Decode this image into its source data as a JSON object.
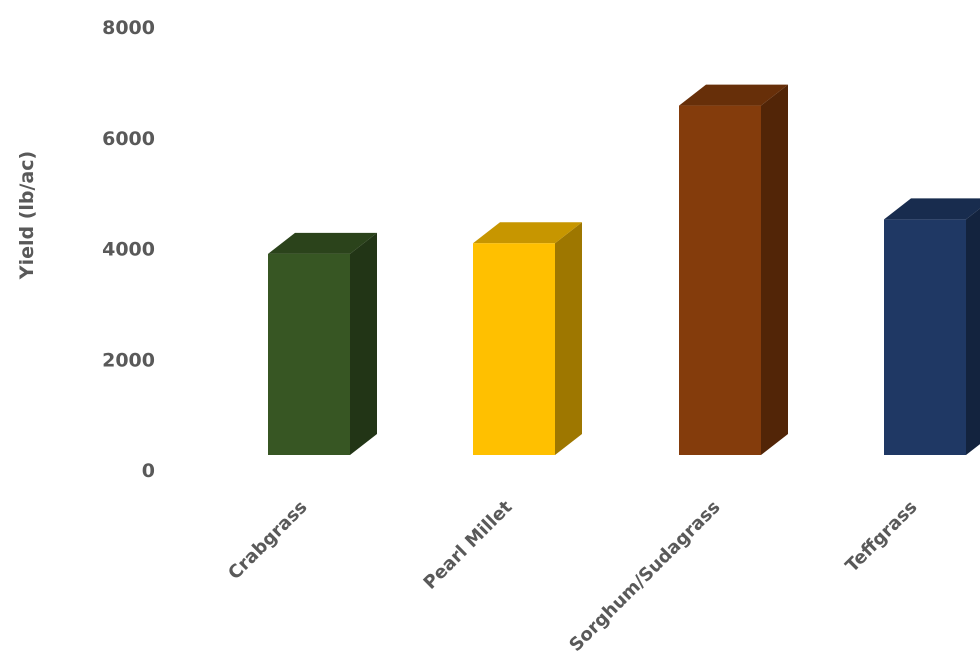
{
  "chart_data": {
    "type": "bar",
    "style": "3d-column",
    "categories": [
      "Crabgrass",
      "Pearl Millet",
      "Sorghum/Sudagrass",
      "Teffgrass"
    ],
    "values": [
      3800,
      4000,
      6600,
      4450
    ],
    "colors": [
      "#375623",
      "#FFC000",
      "#843C0C",
      "#1F3864"
    ],
    "ylabel": "Yield (lb/ac)",
    "xlabel": "",
    "ylim": [
      0,
      8000
    ],
    "yticks": [
      "0",
      "2000",
      "4000",
      "6000",
      "8000"
    ],
    "grid": false,
    "legend": "none"
  }
}
